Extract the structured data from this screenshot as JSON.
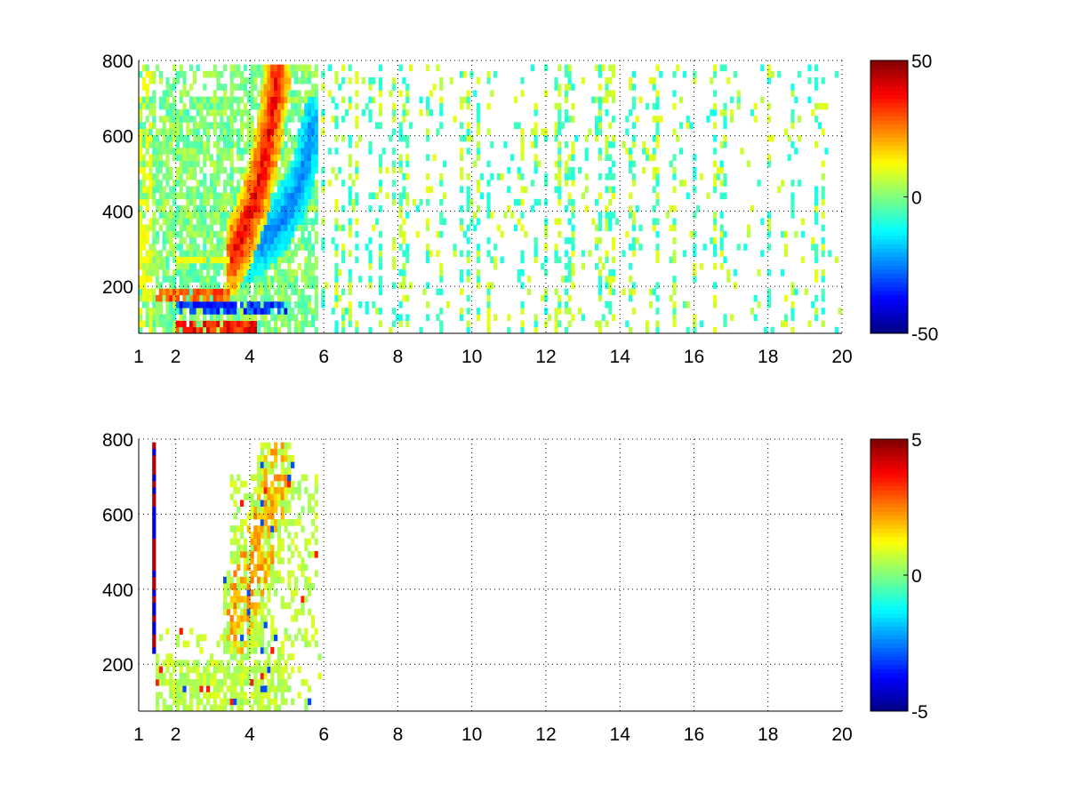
{
  "chart_data": [
    {
      "type": "heatmap",
      "title": "",
      "xlabel": "",
      "ylabel": "",
      "xlim": [
        1,
        20
      ],
      "ylim": [
        75,
        800
      ],
      "xticks": [
        1,
        2,
        4,
        6,
        8,
        10,
        12,
        14,
        16,
        18,
        20
      ],
      "yticks": [
        200,
        400,
        600,
        800
      ],
      "grid": true,
      "colormap": "jet",
      "clim": [
        -50,
        50
      ],
      "colorbar_ticks": [
        -50,
        0,
        50
      ],
      "description_of_values": "Sparse field; strong positive band (~+40) curving from x≈3.6,y≈280 up to x≈4.8,y≈750, negative band (~-25) outside it; strong positive/negative near y<200 for x 1.5–4; scattered small values (~±10) in vertical streaks for x 6–20.",
      "features": [
        {
          "kind": "curve_band",
          "points": [
            [
              3.55,
              280
            ],
            [
              3.9,
              360
            ],
            [
              4.2,
              450
            ],
            [
              4.45,
              560
            ],
            [
              4.6,
              660
            ],
            [
              4.75,
              760
            ]
          ],
          "value": 40
        },
        {
          "kind": "curve_band",
          "points": [
            [
              3.75,
              290
            ],
            [
              4.3,
              320
            ],
            [
              4.9,
              380
            ],
            [
              5.3,
              450
            ],
            [
              5.55,
              550
            ],
            [
              5.7,
              620
            ]
          ],
          "value": -25
        },
        {
          "kind": "row",
          "y": 180,
          "x": [
            1.5,
            3.5
          ],
          "value": 35
        },
        {
          "kind": "row",
          "y": 95,
          "x": [
            2.0,
            4.2
          ],
          "value": 45
        },
        {
          "kind": "row",
          "y": 140,
          "x": [
            2.0,
            5.0
          ],
          "value": -40
        },
        {
          "kind": "row",
          "y": 270,
          "x": [
            2.0,
            3.5
          ],
          "value": 15
        }
      ]
    },
    {
      "type": "heatmap",
      "title": "",
      "xlabel": "",
      "ylabel": "",
      "xlim": [
        1,
        20
      ],
      "ylim": [
        75,
        800
      ],
      "xticks": [
        1,
        2,
        4,
        6,
        8,
        10,
        12,
        14,
        16,
        18,
        20
      ],
      "yticks": [
        200,
        400,
        600,
        800
      ],
      "grid": true,
      "colormap": "jet",
      "clim": [
        -5,
        5
      ],
      "colorbar_ticks": [
        -5,
        0,
        5
      ],
      "description_of_values": "Mostly white; greenish (~0 to +1) cloud for x 1.5–5.8, yellow (~+1.5) arc from x≈3.8,y≈380 to x≈4.6,y≈650; thin red/blue streak at x≈1.4, y 230–790.",
      "features": [
        {
          "kind": "curve_band",
          "points": [
            [
              3.7,
              330
            ],
            [
              4.0,
              420
            ],
            [
              4.3,
              520
            ],
            [
              4.55,
              610
            ],
            [
              4.7,
              700
            ]
          ],
          "value": 1.5
        },
        {
          "kind": "streak",
          "x": 1.4,
          "y": [
            230,
            790
          ],
          "value": 4.5
        }
      ]
    }
  ]
}
